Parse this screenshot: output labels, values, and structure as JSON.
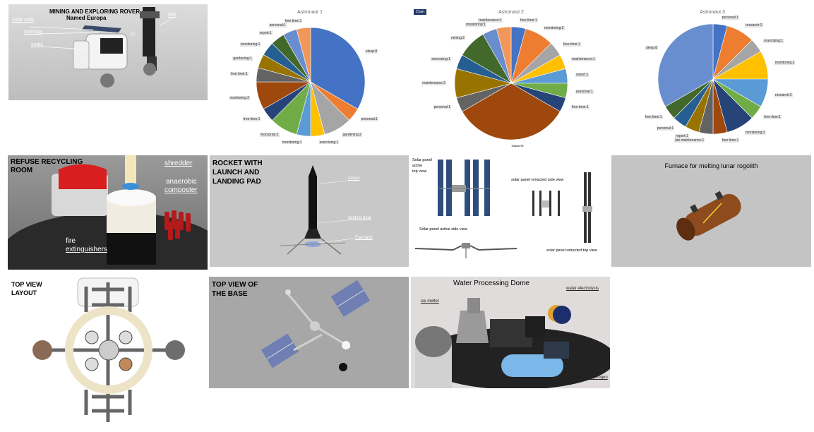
{
  "tiles": {
    "rover": {
      "title_line1": "MINING AND EXPLORING ROVER",
      "title_line2": "Named Europa",
      "labels": {
        "solar": "solar cells",
        "antenna": "antenna",
        "seats": "seats",
        "drill": "drill"
      }
    },
    "refuse": {
      "title_line1": "REFUSE RECYCLING",
      "title_line2": "ROOM",
      "labels": {
        "shredder": "shredder",
        "anaerobic_1": "anaerobic",
        "anaerobic_2": "composter",
        "fire_1": "fire",
        "fire_2": "extinguishers"
      }
    },
    "rocket": {
      "title_line1": "ROCKET WITH",
      "title_line2": "LAUNCH AND",
      "title_line3": "LANDING PAD",
      "labels": {
        "rocket": "rocket",
        "gear": "landing gear",
        "fuel": "Fuel tank"
      }
    },
    "solar": {
      "labels": {
        "active_1": "Solar panel",
        "active_2": "active",
        "active_3": "top view",
        "retracted_side": "solar panel retracted side view",
        "active_side": "Solar panel active side view",
        "retracted_top": "solar panel retracted top view"
      }
    },
    "furnace": {
      "title": "Furnace for melting lunar rogolith"
    },
    "layout": {
      "title_line1": "TOP VIEW",
      "title_line2": "LAYOUT"
    },
    "base": {
      "title_line1": "TOP VIEW OF",
      "title_line2": "THE BASE"
    },
    "water": {
      "title": "Water Processing Dome",
      "labels": {
        "ice": "ice melter",
        "electrolysis": "water electrolysis",
        "hydrogen": "liquid hydrogen"
      }
    }
  },
  "chart_data": [
    {
      "type": "pie",
      "title": "Astronaut 1",
      "categories": [
        "sleep",
        "personal",
        "gardening",
        "exercising",
        "monitoring",
        "food prep",
        "free time",
        "monitoring",
        "free time",
        "gardening",
        "monitoring",
        "report",
        "personal",
        "free time"
      ],
      "values": [
        8,
        1,
        2,
        1,
        1,
        2,
        1,
        2,
        1,
        1,
        1,
        1,
        1,
        1
      ],
      "labels": [
        "sleep:8",
        "personal:1",
        "gardening:2",
        "exercising:1",
        "monitoring:1",
        "food prep:2",
        "free time:1",
        "monitoring:2",
        "free time:1",
        "gardening:1",
        "monitoring:1",
        "report:1",
        "personal:1",
        "free time:1"
      ],
      "colors": [
        "#4472c4",
        "#ed7d31",
        "#a5a5a5",
        "#ffc000",
        "#5b9bd5",
        "#70ad47",
        "#264478",
        "#9e480e",
        "#636363",
        "#997300",
        "#255e91",
        "#43682b",
        "#698ed0",
        "#f1975a"
      ]
    },
    {
      "type": "pie",
      "title": "Astronaut 2",
      "categories": [
        "free time",
        "monitoring",
        "free time",
        "maintenance",
        "report",
        "personal",
        "free time",
        "sleep",
        "personal",
        "maintenance",
        "exercising",
        "mining",
        "monitoring",
        "maintenance"
      ],
      "values": [
        1,
        2,
        1,
        1,
        1,
        1,
        1,
        8,
        1,
        2,
        1,
        2,
        1,
        1
      ],
      "labels": [
        "free time:1",
        "monitoring:2",
        "free time:1",
        "maintenance:1",
        "report:1",
        "personal:1",
        "free time:1",
        "sleep:8",
        "personal:1",
        "maintenance:2",
        "exercising:1",
        "mining:2",
        "monitoring:1",
        "maintenance:1"
      ],
      "colors": [
        "#4472c4",
        "#ed7d31",
        "#a5a5a5",
        "#ffc000",
        "#5b9bd5",
        "#70ad47",
        "#264478",
        "#9e480e",
        "#636363",
        "#997300",
        "#255e91",
        "#43682b",
        "#698ed0",
        "#f1975a"
      ]
    },
    {
      "type": "pie",
      "title": "Astronaut 3",
      "categories": [
        "personal",
        "research",
        "exercising",
        "monitoring",
        "research",
        "free time",
        "monitoring",
        "free time",
        "lab maintenance",
        "report",
        "personal",
        "free time",
        "sleep"
      ],
      "values": [
        1,
        2,
        1,
        2,
        2,
        1,
        2,
        1,
        1,
        1,
        1,
        1,
        8
      ],
      "labels": [
        "personal:1",
        "research:2",
        "exercising:1",
        "monitoring:2",
        "research:2",
        "free time:1",
        "monitoring:2",
        "free time:1",
        "lab maintenance:1",
        "report:1",
        "personal:1",
        "free time:1",
        "sleep:8"
      ],
      "colors": [
        "#4472c4",
        "#ed7d31",
        "#a5a5a5",
        "#ffc000",
        "#5b9bd5",
        "#70ad47",
        "#264478",
        "#9e480e",
        "#636363",
        "#997300",
        "#255e91",
        "#43682b",
        "#698ed0"
      ]
    }
  ],
  "chart_badge": "Chart"
}
